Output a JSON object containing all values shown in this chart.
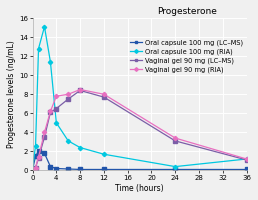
{
  "title": "Progesterone",
  "xlabel": "Time (hours)",
  "ylabel": "Progesterone levels (ng/mL)",
  "ylim": [
    0,
    16
  ],
  "xlim": [
    0,
    36
  ],
  "xticks": [
    0,
    4,
    8,
    12,
    16,
    20,
    24,
    28,
    32,
    36
  ],
  "yticks": [
    0,
    2,
    4,
    6,
    8,
    10,
    12,
    14,
    16
  ],
  "series": [
    {
      "label": "Oral capsule 100 mg (LC–MS)",
      "color": "#2255aa",
      "marker": "s",
      "x": [
        0,
        0.5,
        1,
        2,
        3,
        4,
        6,
        8,
        12,
        24,
        36
      ],
      "y": [
        0.1,
        1.5,
        2.0,
        1.8,
        0.4,
        0.2,
        0.15,
        0.1,
        0.1,
        0.1,
        0.1
      ]
    },
    {
      "label": "Oral capsule 100 mg (RIA)",
      "color": "#00c8e0",
      "marker": "D",
      "x": [
        0,
        0.5,
        1,
        2,
        3,
        4,
        6,
        8,
        12,
        24,
        36
      ],
      "y": [
        0.2,
        2.6,
        12.8,
        15.1,
        11.4,
        5.0,
        3.1,
        2.4,
        1.7,
        0.4,
        1.2
      ]
    },
    {
      "label": "Vaginal gel 90 mg (LC–MS)",
      "color": "#7b5ea7",
      "marker": "s",
      "x": [
        0,
        0.5,
        1,
        2,
        3,
        4,
        6,
        8,
        12,
        24,
        36
      ],
      "y": [
        0.1,
        0.3,
        1.3,
        3.5,
        6.1,
        6.5,
        7.5,
        8.4,
        7.7,
        3.1,
        1.1
      ]
    },
    {
      "label": "Vaginal gel 90 mg (RIA)",
      "color": "#e870c0",
      "marker": "D",
      "x": [
        0,
        0.5,
        1,
        2,
        3,
        4,
        6,
        8,
        12,
        24,
        36
      ],
      "y": [
        0.1,
        0.3,
        1.4,
        4.0,
        6.2,
        7.8,
        8.0,
        8.5,
        8.0,
        3.4,
        1.2
      ]
    }
  ],
  "background_color": "#f0f0f0",
  "plot_bg_color": "#f0f0f0",
  "grid_color": "#ffffff",
  "title_fontsize": 6.5,
  "label_fontsize": 5.5,
  "tick_fontsize": 5.0,
  "legend_fontsize": 4.8
}
